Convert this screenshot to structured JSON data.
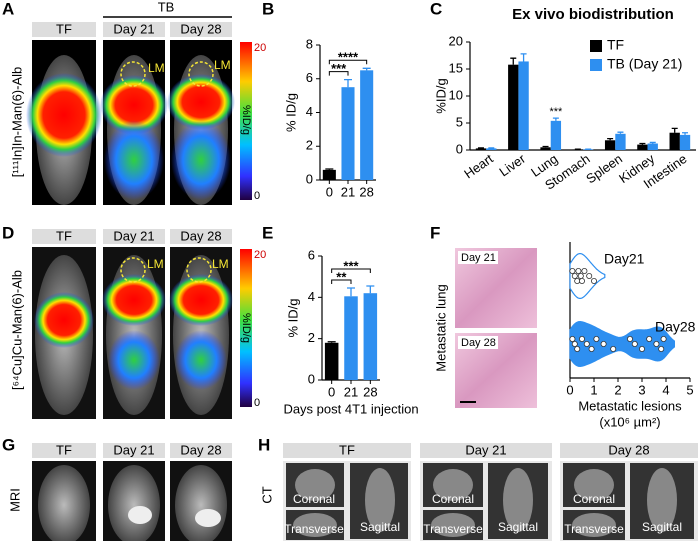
{
  "panels": {
    "A": {
      "letter": "A",
      "group_header": "TB",
      "columns": [
        "TF",
        "Day 21",
        "Day 28"
      ],
      "ylabel": "[¹¹¹In]In-Man(6)-Alb",
      "colorbar": {
        "max": 20,
        "label": "%ID/g",
        "min": 0
      },
      "annotations": [
        "LM",
        "LM"
      ]
    },
    "B": {
      "letter": "B"
    },
    "C": {
      "letter": "C"
    },
    "D": {
      "letter": "D",
      "columns": [
        "TF",
        "Day 21",
        "Day 28"
      ],
      "ylabel": "[⁶⁴Cu]Cu-Man(6)-Alb",
      "colorbar": {
        "max": 20,
        "label": "%ID/g",
        "min": 0
      },
      "annotations": [
        "LM",
        "LM"
      ]
    },
    "E": {
      "letter": "E"
    },
    "F": {
      "letter": "F",
      "images": [
        "Day 21",
        "Day 28"
      ],
      "ylabel": "Metastatic lung"
    },
    "G": {
      "letter": "G",
      "columns": [
        "TF",
        "Day 21",
        "Day 28"
      ],
      "ylabel": "MRI"
    },
    "H": {
      "letter": "H",
      "columns": [
        "TF",
        "Day 21",
        "Day 28"
      ],
      "ylabel": "CT",
      "views": [
        "Coronal",
        "Transverse",
        "Sagittal"
      ]
    }
  },
  "chart_data": [
    {
      "type": "bar",
      "ylabel": "% ID/g",
      "categories": [
        "0",
        "21",
        "28"
      ],
      "values": [
        0.6,
        5.5,
        6.5
      ],
      "errors": [
        0.05,
        0.45,
        0.12
      ],
      "colors": [
        "#000000",
        "#2e8ff0",
        "#2e8ff0"
      ],
      "ylim": [
        0,
        8
      ],
      "yticks": [
        0,
        2,
        4,
        6,
        8
      ],
      "annotations": [
        {
          "text": "***",
          "between": [
            "0",
            "21"
          ]
        },
        {
          "text": "****",
          "between": [
            "0",
            "28"
          ]
        }
      ]
    },
    {
      "type": "grouped_bar",
      "title": "Ex vivo biodistribution",
      "ylabel": "%ID/g",
      "categories": [
        "Heart",
        "Liver",
        "Lung",
        "Stomach",
        "Spleen",
        "Kidney",
        "Intestine"
      ],
      "series": [
        {
          "name": "TF",
          "color": "#000000",
          "values": [
            0.3,
            15.8,
            0.5,
            0.1,
            1.8,
            1.0,
            3.2
          ],
          "errors": [
            0.1,
            1.2,
            0.15,
            0.05,
            0.3,
            0.2,
            0.8
          ]
        },
        {
          "name": "TB (Day 21)",
          "color": "#2e8ff0",
          "values": [
            0.3,
            16.4,
            5.4,
            0.1,
            3.0,
            1.2,
            2.8
          ],
          "errors": [
            0.1,
            1.4,
            0.5,
            0.05,
            0.3,
            0.2,
            0.4
          ]
        }
      ],
      "ylim": [
        0,
        20
      ],
      "yticks": [
        0,
        5,
        10,
        15,
        20
      ],
      "legend": "upper right",
      "annotations": [
        {
          "text": "***",
          "category": "Lung"
        }
      ]
    },
    {
      "type": "bar",
      "ylabel": "% ID/g",
      "xlabel": "Days post 4T1 injection",
      "categories": [
        "0",
        "21",
        "28"
      ],
      "values": [
        1.8,
        4.05,
        4.2
      ],
      "errors": [
        0.05,
        0.4,
        0.35
      ],
      "colors": [
        "#000000",
        "#2e8ff0",
        "#2e8ff0"
      ],
      "ylim": [
        0,
        6
      ],
      "yticks": [
        0,
        2,
        4,
        6
      ],
      "annotations": [
        {
          "text": "**",
          "between": [
            "0",
            "21"
          ]
        },
        {
          "text": "***",
          "between": [
            "0",
            "28"
          ]
        }
      ]
    },
    {
      "type": "violin",
      "xlabel": "Metastatic lesions",
      "xlabel_unit": "(x10⁶ µm²)",
      "xlim": [
        0,
        5
      ],
      "xticks": [
        0,
        1,
        2,
        3,
        4,
        5
      ],
      "series": [
        {
          "name": "Day21",
          "color": "#ffffff",
          "values": [
            0.1,
            0.2,
            0.3,
            0.35,
            0.45,
            0.5,
            0.6,
            0.8,
            1.0
          ]
        },
        {
          "name": "Day28",
          "color": "#2e8ff0",
          "values": [
            0.1,
            0.2,
            0.3,
            0.5,
            0.7,
            0.9,
            1.1,
            1.4,
            1.8,
            2.5,
            2.7,
            3.0,
            3.3,
            3.6,
            3.8,
            3.9
          ]
        }
      ]
    }
  ]
}
